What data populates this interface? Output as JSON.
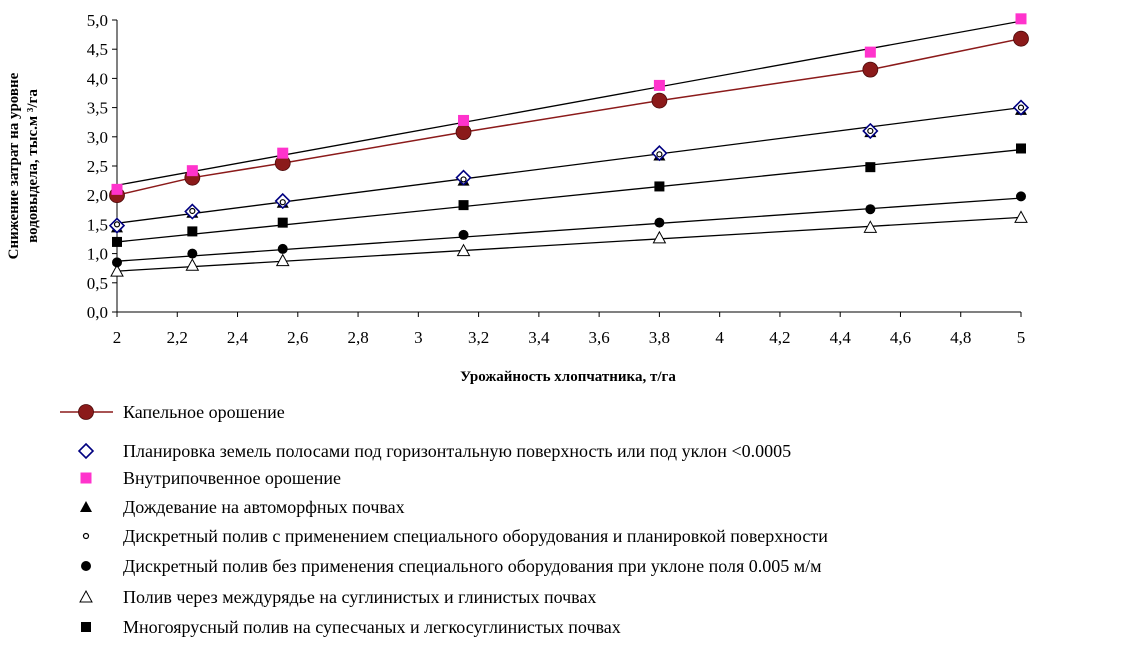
{
  "chart_data": {
    "type": "scatter",
    "xlabel": "Урожайность хлопчатника, т/га",
    "ylabel_lines": [
      "Снижение затрат на уровне",
      "водовыдела, тыс.м ³/га"
    ],
    "xlim": [
      2,
      5
    ],
    "ylim": [
      0,
      5
    ],
    "x_ticks": [
      "2",
      "2,2",
      "2,4",
      "2,6",
      "2,8",
      "3",
      "3,2",
      "3,4",
      "3,6",
      "3,8",
      "4",
      "4,2",
      "4,4",
      "4,6",
      "4,8",
      "5"
    ],
    "y_ticks": [
      "0,0",
      "0,5",
      "1,0",
      "1,5",
      "2,0",
      "2,5",
      "3,0",
      "3,5",
      "4,0",
      "4,5",
      "5,0"
    ],
    "x": [
      2,
      2.25,
      2.55,
      3.15,
      3.8,
      4.5,
      5
    ],
    "grid": false,
    "legend_position": "bottom",
    "series": [
      {
        "name": "Капельное орошение",
        "marker": "circle-large",
        "color": "#8B1A1A",
        "line": true,
        "values": [
          2.0,
          2.3,
          2.55,
          3.08,
          3.62,
          4.15,
          4.68
        ]
      },
      {
        "name": "Планировка земель полосами под горизонтальную поверхность или под уклон <0.0005",
        "marker": "diamond-open",
        "color": "#000080",
        "line": false,
        "values": [
          1.48,
          1.72,
          1.9,
          2.3,
          2.72,
          3.1,
          3.5
        ]
      },
      {
        "name": "Внутрипочвенное орошение",
        "marker": "square",
        "color": "#FF33CC",
        "line": false,
        "values": [
          2.1,
          2.42,
          2.72,
          3.28,
          3.88,
          4.45,
          5.02
        ]
      },
      {
        "name": "Дождевание на автоморфных почвах",
        "marker": "triangle",
        "color": "#000000",
        "line": false,
        "values": [
          1.45,
          1.7,
          1.87,
          2.25,
          2.68,
          3.08,
          3.46
        ]
      },
      {
        "name": "Дискретный полив с применением специального оборудования и планировкой поверхности",
        "marker": "circle-small-open",
        "color": "#000000",
        "line": false,
        "values": [
          1.5,
          1.73,
          1.88,
          2.27,
          2.7,
          3.1,
          3.5
        ]
      },
      {
        "name": "Дискретный полив без применения специального оборудования при уклоне поля 0.005 м/м",
        "marker": "circle",
        "color": "#000000",
        "line": false,
        "values": [
          0.85,
          1.0,
          1.08,
          1.32,
          1.53,
          1.76,
          1.98
        ]
      },
      {
        "name": "Полив через междурядье на суглинистых и глинистых почвах",
        "marker": "triangle-open",
        "color": "#000000",
        "line": false,
        "values": [
          0.7,
          0.8,
          0.88,
          1.05,
          1.27,
          1.45,
          1.62
        ]
      },
      {
        "name": "Многоярусный полив на супесчаных и легкосуглинистых почвах",
        "marker": "square-dark",
        "color": "#000000",
        "line": false,
        "values": [
          1.2,
          1.38,
          1.53,
          1.83,
          2.15,
          2.48,
          2.8
        ]
      }
    ],
    "trendlines": [
      {
        "from": [
          2,
          2.17
        ],
        "to": [
          5,
          4.98
        ],
        "color": "#000000"
      },
      {
        "from": [
          2,
          1.52
        ],
        "to": [
          5,
          3.5
        ],
        "color": "#000000"
      },
      {
        "from": [
          2,
          1.2
        ],
        "to": [
          5,
          2.78
        ],
        "color": "#000000"
      },
      {
        "from": [
          2,
          0.87
        ],
        "to": [
          5,
          1.95
        ],
        "color": "#000000"
      },
      {
        "from": [
          2,
          0.7
        ],
        "to": [
          5,
          1.62
        ],
        "color": "#000000"
      }
    ]
  }
}
